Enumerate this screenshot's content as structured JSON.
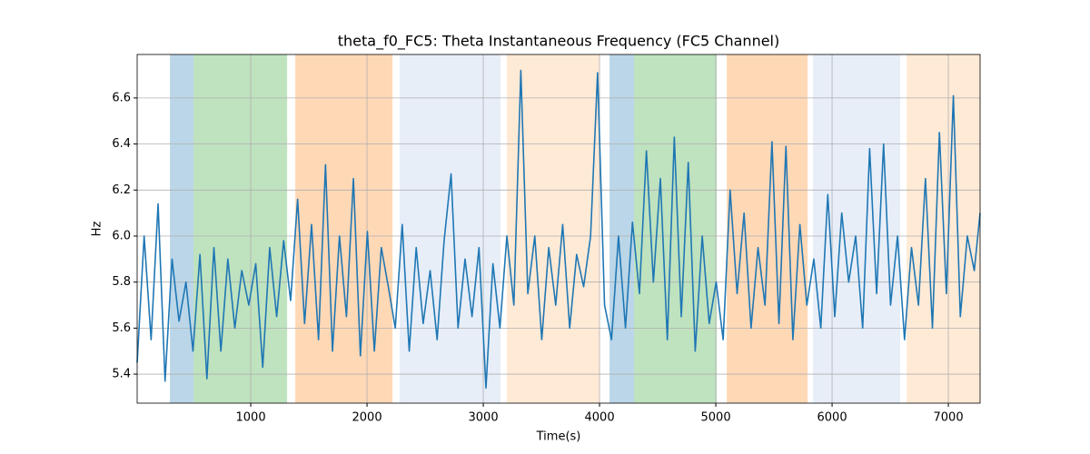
{
  "chart_data": {
    "type": "line",
    "title": "theta_f0_FC5: Theta Instantaneous Frequency (FC5 Channel)",
    "x_label": "Time(s)",
    "y_label": "Hz",
    "xlim": [
      23,
      7273
    ],
    "ylim": [
      5.274,
      6.789
    ],
    "xticks": [
      1000,
      2000,
      3000,
      4000,
      5000,
      6000,
      7000
    ],
    "yticks": [
      5.4,
      5.6,
      5.8,
      {
        "value": 6,
        "label": "6.0"
      },
      6.2,
      6.4,
      6.6
    ],
    "grid": true,
    "spans": [
      {
        "start": 305,
        "end": 508,
        "color": "#1f77b4"
      },
      {
        "start": 508,
        "end": 1313,
        "color": "#2ca02c"
      },
      {
        "start": 1383,
        "end": 2219,
        "color": "#ff7f0e"
      },
      {
        "start": 2281,
        "end": 3148,
        "color": "#aec7e8"
      },
      {
        "start": 3203,
        "end": 4000,
        "color": "#ffbb78"
      },
      {
        "start": 4086,
        "end": 4297,
        "color": "#1f77b4"
      },
      {
        "start": 4297,
        "end": 5008,
        "color": "#2ca02c"
      },
      {
        "start": 5094,
        "end": 5789,
        "color": "#ff7f0e"
      },
      {
        "start": 5836,
        "end": 6586,
        "color": "#aec7e8"
      },
      {
        "start": 6641,
        "end": 7273,
        "color": "#ffbb78"
      }
    ],
    "x": [
      23,
      83,
      143,
      203,
      263,
      323,
      383,
      443,
      503,
      563,
      623,
      683,
      743,
      803,
      863,
      923,
      983,
      1043,
      1103,
      1163,
      1223,
      1283,
      1343,
      1403,
      1463,
      1523,
      1583,
      1643,
      1703,
      1763,
      1823,
      1883,
      1943,
      2003,
      2063,
      2123,
      2183,
      2243,
      2303,
      2363,
      2423,
      2483,
      2543,
      2603,
      2663,
      2723,
      2783,
      2843,
      2903,
      2963,
      3023,
      3083,
      3143,
      3203,
      3263,
      3323,
      3383,
      3443,
      3503,
      3563,
      3623,
      3683,
      3743,
      3803,
      3863,
      3923,
      3983,
      4043,
      4103,
      4163,
      4223,
      4283,
      4343,
      4403,
      4463,
      4523,
      4583,
      4643,
      4703,
      4763,
      4823,
      4883,
      4943,
      5003,
      5063,
      5123,
      5183,
      5243,
      5303,
      5363,
      5423,
      5483,
      5543,
      5603,
      5663,
      5723,
      5783,
      5843,
      5903,
      5963,
      6023,
      6083,
      6143,
      6203,
      6263,
      6323,
      6383,
      6443,
      6503,
      6563,
      6623,
      6683,
      6743,
      6803,
      6863,
      6923,
      6983,
      7043,
      7103,
      7163,
      7223,
      7273
    ],
    "series": [
      {
        "color": "#1f77b4",
        "values": [
          5.45,
          6.0,
          5.55,
          6.14,
          5.37,
          5.9,
          5.63,
          5.8,
          5.5,
          5.92,
          5.38,
          5.95,
          5.5,
          5.9,
          5.6,
          5.85,
          5.7,
          5.88,
          5.43,
          5.95,
          5.65,
          5.98,
          5.72,
          6.16,
          5.62,
          6.05,
          5.55,
          6.31,
          5.5,
          6.0,
          5.65,
          6.25,
          5.48,
          6.02,
          5.5,
          5.95,
          5.78,
          5.6,
          6.05,
          5.5,
          5.95,
          5.62,
          5.85,
          5.55,
          5.98,
          6.27,
          5.6,
          5.9,
          5.65,
          5.95,
          5.34,
          5.88,
          5.6,
          6.0,
          5.7,
          6.72,
          5.75,
          6.0,
          5.55,
          5.95,
          5.7,
          6.05,
          5.6,
          5.92,
          5.78,
          6.0,
          6.71,
          5.7,
          5.55,
          6.0,
          5.6,
          6.06,
          5.75,
          6.37,
          5.8,
          6.25,
          5.55,
          6.43,
          5.65,
          6.32,
          5.5,
          6.0,
          5.62,
          5.8,
          5.55,
          6.2,
          5.75,
          6.1,
          5.6,
          5.95,
          5.7,
          6.41,
          5.62,
          6.39,
          5.55,
          6.05,
          5.7,
          5.9,
          5.6,
          6.18,
          5.65,
          6.1,
          5.8,
          6.0,
          5.6,
          6.38,
          5.75,
          6.4,
          5.7,
          6.0,
          5.55,
          5.95,
          5.7,
          6.25,
          5.6,
          6.45,
          5.75,
          6.61,
          5.65,
          6.0,
          5.85,
          6.1
        ]
      }
    ]
  }
}
